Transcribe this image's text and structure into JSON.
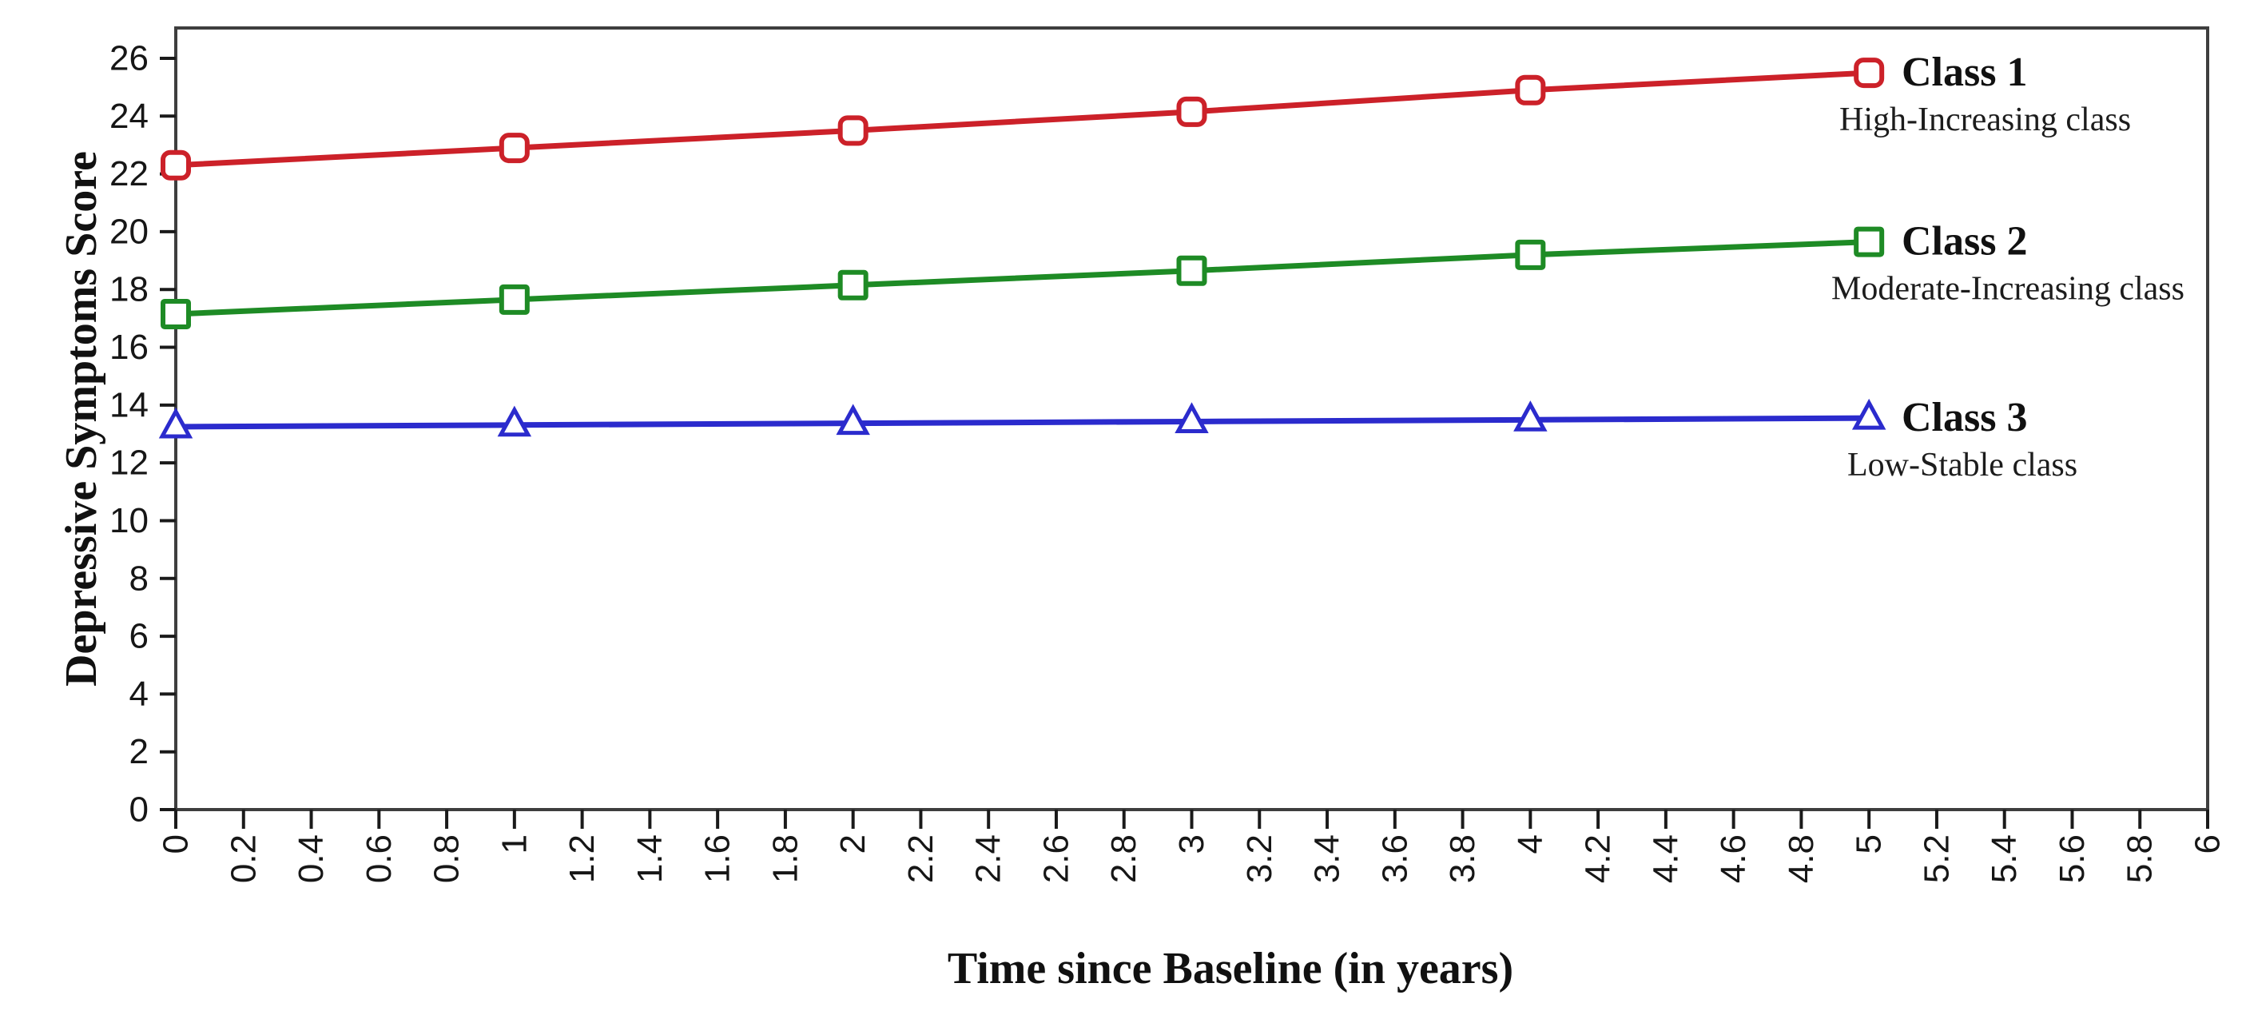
{
  "figure": {
    "background": "#ffffff"
  },
  "chart_data": {
    "type": "line",
    "title": "",
    "xlabel": "Time since Baseline (in years)",
    "ylabel": "Depressive Symptoms Score",
    "x": [
      0,
      1,
      2,
      3,
      4,
      5
    ],
    "xlim": [
      0,
      6
    ],
    "ylim": [
      0,
      26
    ],
    "grid": false,
    "legend_position": "inline-right",
    "x_ticks": [
      "0",
      "0.2",
      "0.4",
      "0.6",
      "0.8",
      "1",
      "1.2",
      "1.4",
      "1.6",
      "1.8",
      "2",
      "2.2",
      "2.4",
      "2.6",
      "2.8",
      "3",
      "3.2",
      "3.4",
      "3.6",
      "3.8",
      "4",
      "4.2",
      "4.4",
      "4.6",
      "4.8",
      "5",
      "5.2",
      "5.4",
      "5.6",
      "5.8",
      "6"
    ],
    "y_ticks": [
      "0",
      "2",
      "4",
      "6",
      "8",
      "10",
      "12",
      "14",
      "16",
      "18",
      "20",
      "22",
      "24",
      "26"
    ],
    "x_tick_rotation": -90,
    "axis_color": "#3e3e3e",
    "tick_color": "#1a1a1a",
    "text_color": "#111111",
    "series": [
      {
        "name": "Class 1",
        "subtitle": "High-Increasing class",
        "color": "#cc2129",
        "marker": "rounded-square",
        "values": [
          22.3,
          22.9,
          23.5,
          24.15,
          24.9,
          25.5
        ]
      },
      {
        "name": "Class 2",
        "subtitle": "Moderate-Increasing class",
        "color": "#1e8b25",
        "marker": "square",
        "values": [
          17.15,
          17.65,
          18.15,
          18.65,
          19.2,
          19.65
        ]
      },
      {
        "name": "Class 3",
        "subtitle": "Low-Stable class",
        "color": "#2b2bcd",
        "marker": "triangle",
        "values": [
          13.25,
          13.31,
          13.37,
          13.43,
          13.49,
          13.55
        ]
      }
    ]
  }
}
